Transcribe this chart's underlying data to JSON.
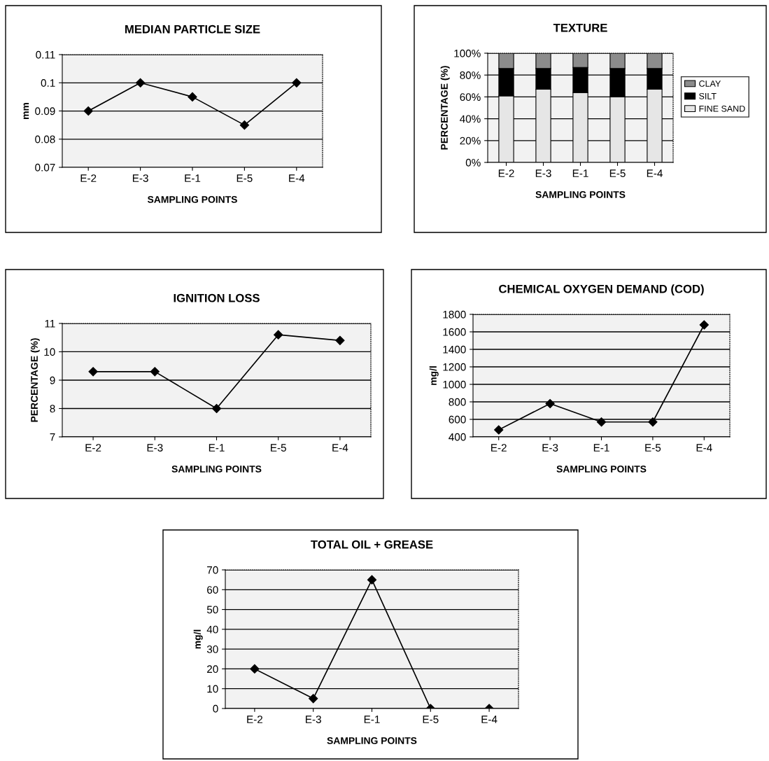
{
  "chart_data": [
    {
      "type": "line",
      "title": "MEDIAN PARTICLE SIZE",
      "xlabel": "SAMPLING POINTS",
      "ylabel": "mm",
      "categories": [
        "E-2",
        "E-3",
        "E-1",
        "E-5",
        "E-4"
      ],
      "series": [
        {
          "color": "#000000",
          "values": [
            0.09,
            0.1,
            0.095,
            0.085,
            0.1
          ]
        }
      ],
      "ylim": [
        0.07,
        0.11
      ],
      "yticks": [
        0.07,
        0.08,
        0.09,
        0.1,
        0.11
      ],
      "grid": "y",
      "marker": "diamond",
      "line_style": "solid"
    },
    {
      "type": "bar",
      "stacked": true,
      "title": "TEXTURE",
      "xlabel": "SAMPLING POINTS",
      "ylabel": "PERCENTAGE (%)",
      "categories": [
        "E-2",
        "E-3",
        "E-1",
        "E-5",
        "E-4"
      ],
      "series": [
        {
          "name": "FINE SAND",
          "color": "#e6e6e6",
          "values": [
            61,
            67,
            64,
            60,
            67
          ]
        },
        {
          "name": "SILT",
          "color": "#000000",
          "values": [
            25,
            19,
            23,
            26,
            19
          ]
        },
        {
          "name": "CLAY",
          "color": "#8c8c8c",
          "values": [
            14,
            14,
            13,
            14,
            14
          ]
        }
      ],
      "ylim": [
        0,
        100
      ],
      "yticks": [
        {
          "value": 0,
          "label": "0%"
        },
        {
          "value": 20,
          "label": "20%"
        },
        {
          "value": 40,
          "label": "40%"
        },
        {
          "value": 60,
          "label": "60%"
        },
        {
          "value": 80,
          "label": "80%"
        },
        {
          "value": 100,
          "label": "100%"
        }
      ],
      "grid": "y",
      "legend": "right"
    },
    {
      "type": "line",
      "title": "IGNITION LOSS",
      "xlabel": "SAMPLING POINTS",
      "ylabel": "PERCENTAGE (%)",
      "categories": [
        "E-2",
        "E-3",
        "E-1",
        "E-5",
        "E-4"
      ],
      "series": [
        {
          "color": "#000000",
          "values": [
            9.3,
            9.3,
            8.0,
            10.6,
            10.4
          ]
        }
      ],
      "ylim": [
        7,
        11
      ],
      "yticks": [
        7,
        8,
        9,
        10,
        11
      ],
      "grid": "y",
      "marker": "diamond",
      "line_style": "solid"
    },
    {
      "type": "line",
      "title": "CHEMICAL OXYGEN DEMAND (COD)",
      "xlabel": "SAMPLING POINTS",
      "ylabel": "mg/l",
      "categories": [
        "E-2",
        "E-3",
        "E-1",
        "E-5",
        "E-4"
      ],
      "series": [
        {
          "color": "#000000",
          "values": [
            480,
            780,
            570,
            570,
            1680
          ]
        }
      ],
      "ylim": [
        400,
        1800
      ],
      "yticks": [
        400,
        600,
        800,
        1000,
        1200,
        1400,
        1600,
        1800
      ],
      "grid": "y",
      "marker": "diamond",
      "line_style": "solid"
    },
    {
      "type": "line",
      "title": "TOTAL OIL + GREASE",
      "xlabel": "SAMPLING POINTS",
      "ylabel": "mg/l",
      "categories": [
        "E-2",
        "E-3",
        "E-1",
        "E-5",
        "E-4"
      ],
      "series": [
        {
          "color": "#000000",
          "values": [
            20,
            5,
            65,
            0,
            0
          ]
        }
      ],
      "ylim": [
        0,
        70
      ],
      "yticks": [
        0,
        10,
        20,
        30,
        40,
        50,
        60,
        70
      ],
      "grid": "y",
      "marker": "diamond",
      "line_style": "solid"
    }
  ]
}
